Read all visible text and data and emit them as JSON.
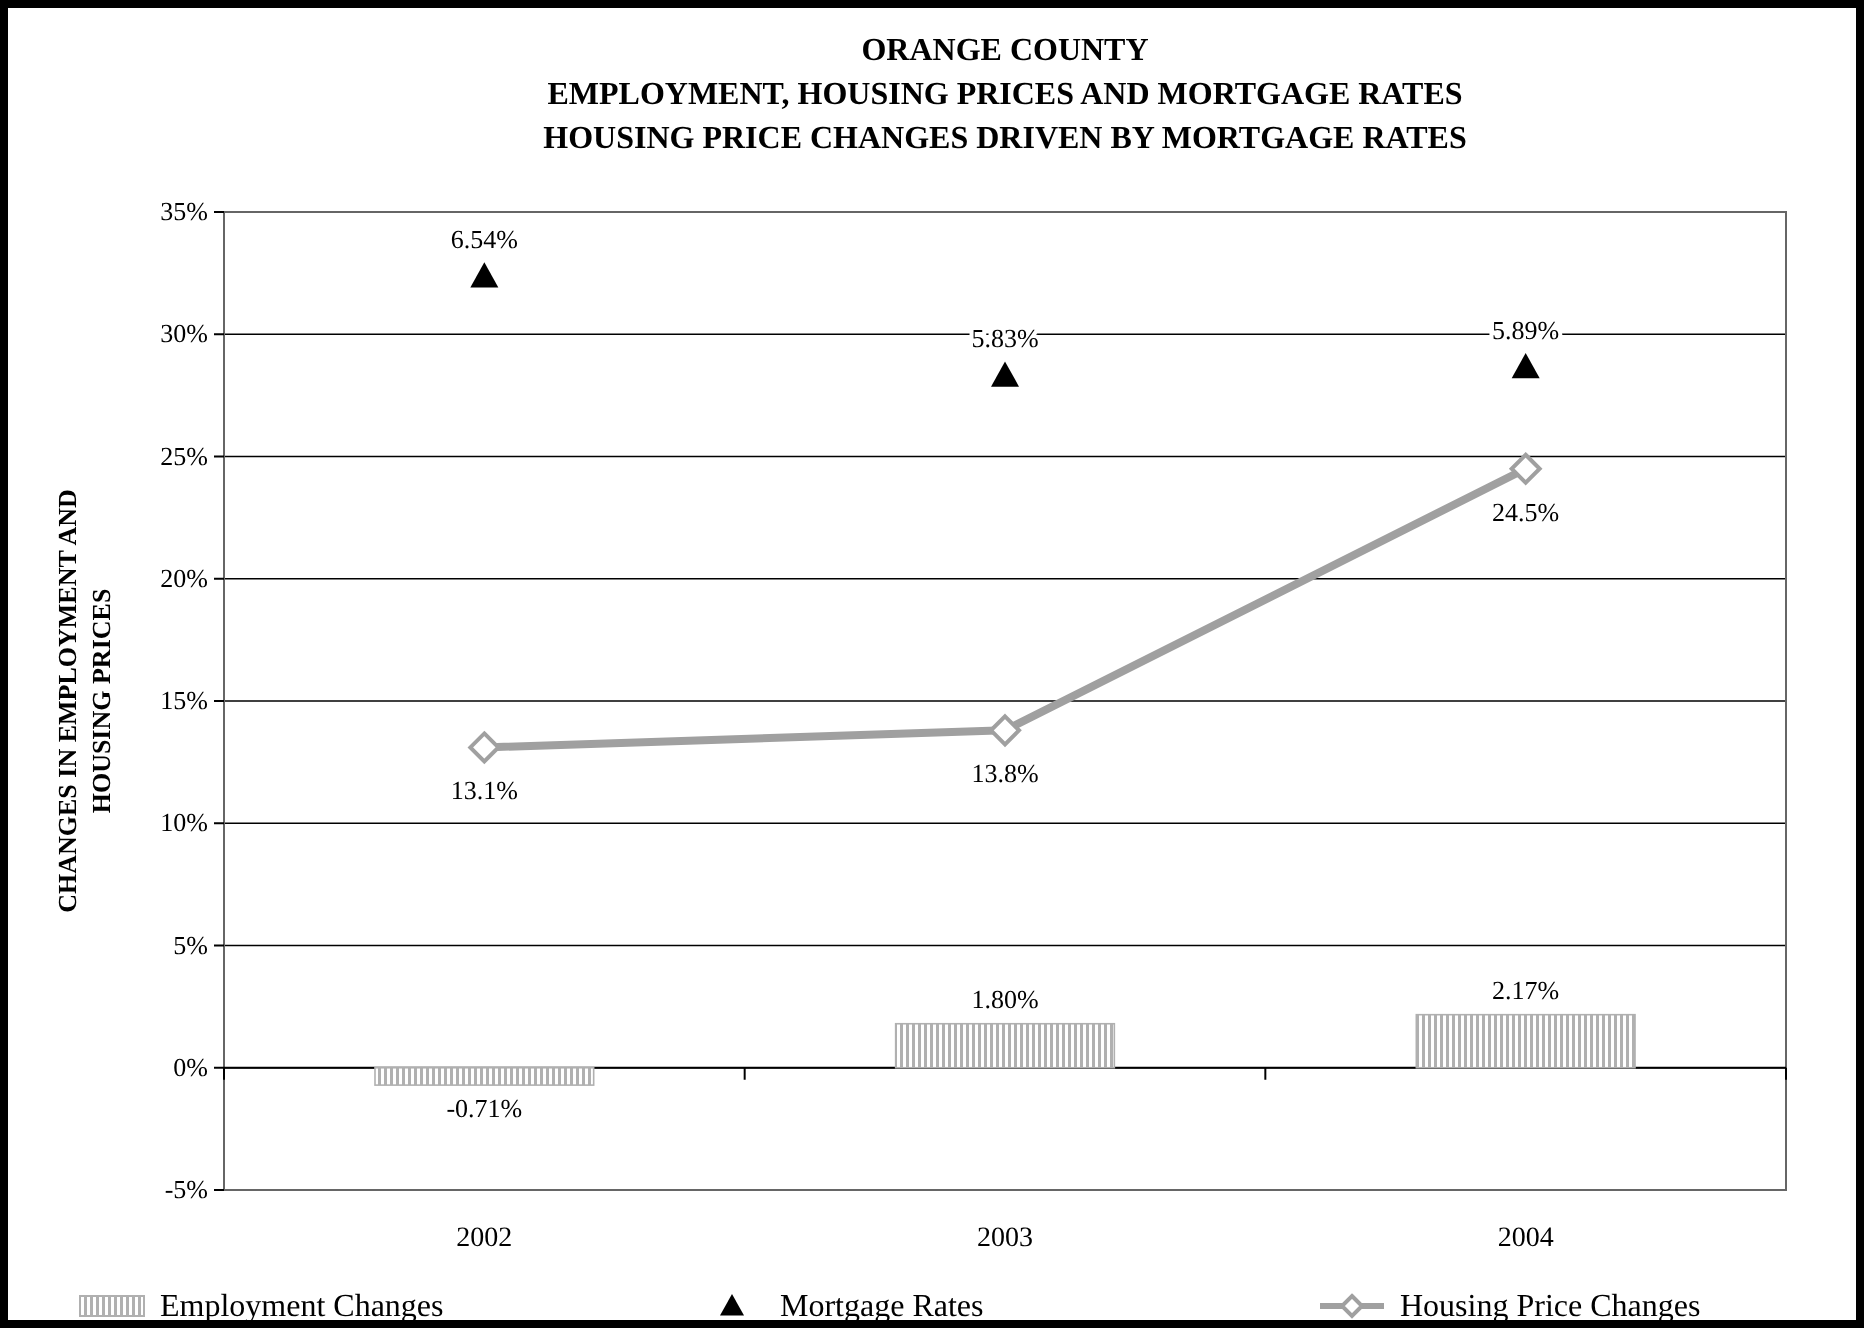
{
  "chart_data": {
    "type": "bar",
    "title": "ORANGE COUNTY\nEMPLOYMENT, HOUSING PRICES AND MORTGAGE RATES\nHOUSING PRICE CHANGES DRIVEN BY MORTGAGE RATES",
    "ylabel": "CHANGES IN EMPLOYMENT AND\nHOUSING PRICES",
    "categories": [
      "2002",
      "2003",
      "2004"
    ],
    "series": [
      {
        "name": "Employment Changes",
        "color": "#b0b0b0",
        "values": [
          -0.71,
          1.8,
          2.17
        ],
        "value_labels": [
          "-0.71%",
          "1.80%",
          "2.17%"
        ]
      },
      {
        "name": "Mortgage Rates",
        "type": "scatter",
        "axis": "y2",
        "marker": "triangle",
        "color": "#000000",
        "values": [
          6.54,
          5.83,
          5.89
        ],
        "value_labels": [
          "6.54%",
          "5.83%",
          "5.89%"
        ]
      },
      {
        "name": "Housing Price Changes",
        "type": "line",
        "marker": "diamond",
        "color": "#a0a0a0",
        "values": [
          13.1,
          13.8,
          24.5
        ],
        "value_labels": [
          "13.1%",
          "13.8%",
          "24.5%"
        ]
      }
    ],
    "ylim": [
      -5,
      35
    ],
    "yticks": [
      {
        "value": -5,
        "label": "-5%"
      },
      {
        "value": 0,
        "label": "0%"
      },
      {
        "value": 5,
        "label": "5%"
      },
      {
        "value": 10,
        "label": "10%"
      },
      {
        "value": 15,
        "label": "15%"
      },
      {
        "value": 20,
        "label": "20%"
      },
      {
        "value": 25,
        "label": "25%"
      },
      {
        "value": 30,
        "label": "30%"
      },
      {
        "value": 35,
        "label": "35%"
      }
    ],
    "y2lim": [
      0,
      7
    ],
    "grid": "y",
    "legend": "bottom"
  }
}
